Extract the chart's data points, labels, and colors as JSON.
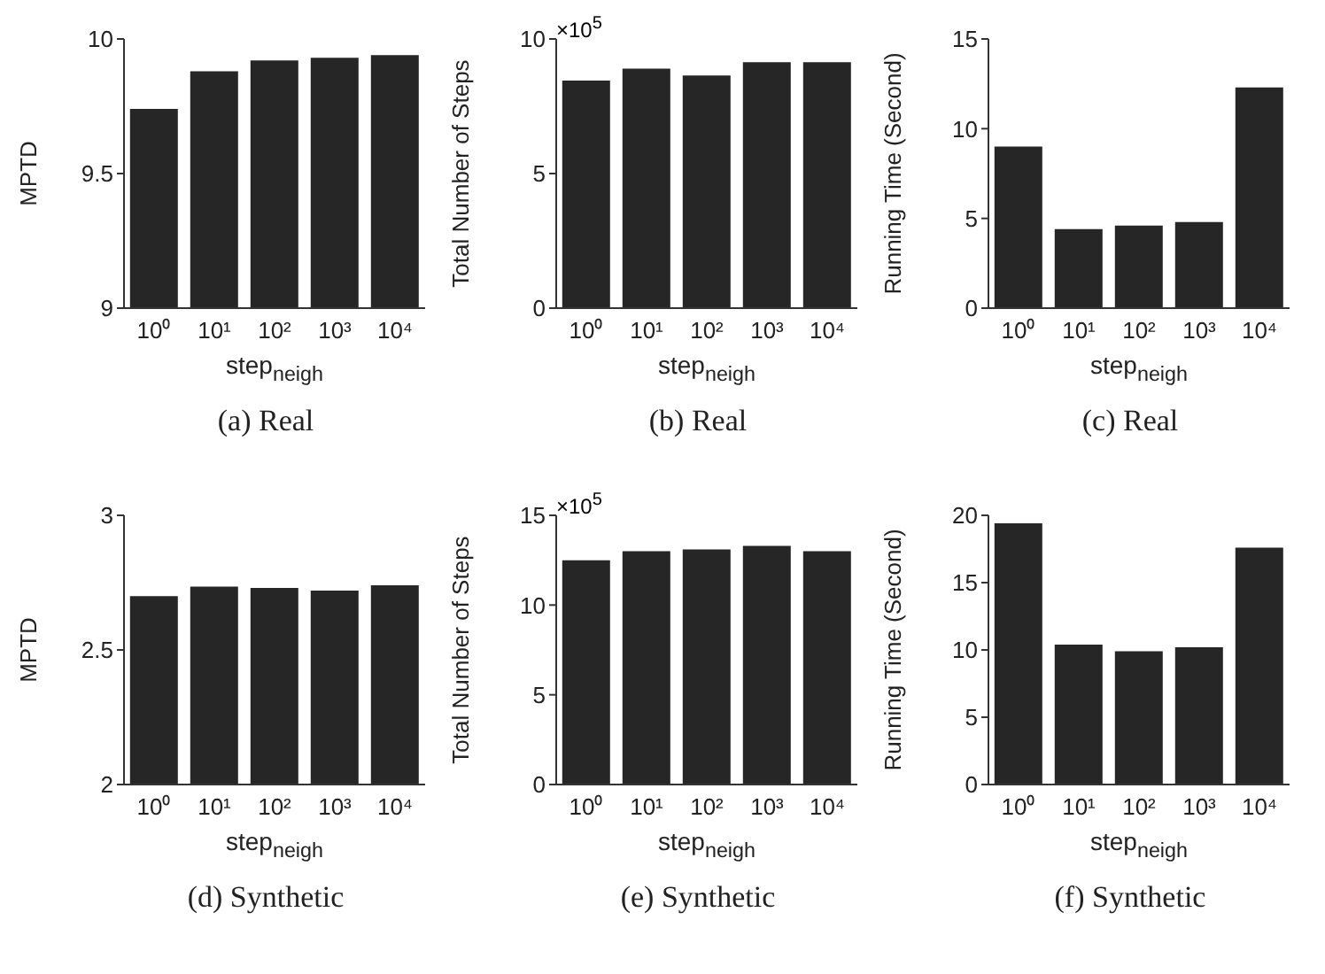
{
  "chart_data": [
    {
      "type": "bar",
      "title": "(a)  Real",
      "xlabel": "step$_{neigh}$",
      "ylabel": "MPTD",
      "categories": [
        "10⁰",
        "10¹",
        "10²",
        "10³",
        "10⁴"
      ],
      "values": [
        9.74,
        9.88,
        9.92,
        9.93,
        9.94
      ],
      "color": "#262626",
      "ylim": [
        9,
        10
      ],
      "yticks": [
        9,
        9.5,
        10
      ],
      "grid": false,
      "legend": false
    },
    {
      "type": "bar",
      "title": "(b)  Real",
      "xlabel": "step$_{neigh}$",
      "ylabel": "Total Number of Steps",
      "annotations": [
        "×10$^{5}$"
      ],
      "categories": [
        "10⁰",
        "10¹",
        "10²",
        "10³",
        "10⁴"
      ],
      "values": [
        8.45,
        8.9,
        8.64,
        9.14,
        9.14
      ],
      "color": "#262626",
      "ylim": [
        0,
        10
      ],
      "yticks": [
        0,
        5,
        10
      ],
      "grid": false,
      "legend": false
    },
    {
      "type": "bar",
      "title": "(c)  Real",
      "xlabel": "step$_{neigh}$",
      "ylabel": "Running Time (Second)",
      "categories": [
        "10⁰",
        "10¹",
        "10²",
        "10³",
        "10⁴"
      ],
      "values": [
        9.0,
        4.4,
        4.6,
        4.8,
        12.3
      ],
      "color": "#262626",
      "ylim": [
        0,
        15
      ],
      "yticks": [
        0,
        5,
        10,
        15
      ],
      "grid": false,
      "legend": false
    },
    {
      "type": "bar",
      "title": "(d)  Synthetic",
      "xlabel": "step$_{neigh}$",
      "ylabel": "MPTD",
      "categories": [
        "10⁰",
        "10¹",
        "10²",
        "10³",
        "10⁴"
      ],
      "values": [
        2.7,
        2.735,
        2.73,
        2.72,
        2.74
      ],
      "color": "#262626",
      "ylim": [
        2,
        3
      ],
      "yticks": [
        2,
        2.5,
        3
      ],
      "grid": false,
      "legend": false
    },
    {
      "type": "bar",
      "title": "(e)  Synthetic",
      "xlabel": "step$_{neigh}$",
      "ylabel": "Total Number of Steps",
      "annotations": [
        "×10$^{5}$"
      ],
      "categories": [
        "10⁰",
        "10¹",
        "10²",
        "10³",
        "10⁴"
      ],
      "values": [
        12.5,
        13.0,
        13.1,
        13.3,
        13.0
      ],
      "color": "#262626",
      "ylim": [
        0,
        15
      ],
      "yticks": [
        0,
        5,
        10,
        15
      ],
      "grid": false,
      "legend": false
    },
    {
      "type": "bar",
      "title": "(f)  Synthetic",
      "xlabel": "step$_{neigh}$",
      "ylabel": "Running Time (Second)",
      "categories": [
        "10⁰",
        "10¹",
        "10²",
        "10³",
        "10⁴"
      ],
      "values": [
        19.4,
        10.4,
        9.9,
        10.2,
        17.6
      ],
      "color": "#262626",
      "ylim": [
        0,
        20
      ],
      "yticks": [
        0,
        5,
        10,
        15,
        20
      ],
      "grid": false,
      "legend": false
    }
  ]
}
